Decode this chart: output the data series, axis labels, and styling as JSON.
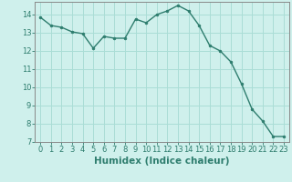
{
  "x": [
    0,
    1,
    2,
    3,
    4,
    5,
    6,
    7,
    8,
    9,
    10,
    11,
    12,
    13,
    14,
    15,
    16,
    17,
    18,
    19,
    20,
    21,
    22,
    23
  ],
  "y": [
    13.85,
    13.4,
    13.3,
    13.05,
    12.95,
    12.15,
    12.8,
    12.7,
    12.7,
    13.75,
    13.55,
    14.0,
    14.2,
    14.5,
    14.2,
    13.4,
    12.3,
    12.0,
    11.4,
    10.2,
    8.8,
    8.15,
    7.3,
    7.3
  ],
  "line_color": "#2e7d6e",
  "marker": "o",
  "marker_size": 2,
  "bg_color": "#cff0ec",
  "grid_color": "#aaddd6",
  "xlabel": "Humidex (Indice chaleur)",
  "ylim": [
    7,
    14.7
  ],
  "xlim": [
    -0.5,
    23.5
  ],
  "yticks": [
    7,
    8,
    9,
    10,
    11,
    12,
    13,
    14
  ],
  "xticks": [
    0,
    1,
    2,
    3,
    4,
    5,
    6,
    7,
    8,
    9,
    10,
    11,
    12,
    13,
    14,
    15,
    16,
    17,
    18,
    19,
    20,
    21,
    22,
    23
  ],
  "tick_fontsize": 6,
  "xlabel_fontsize": 7.5,
  "line_width": 1.0,
  "spine_color": "#888888"
}
